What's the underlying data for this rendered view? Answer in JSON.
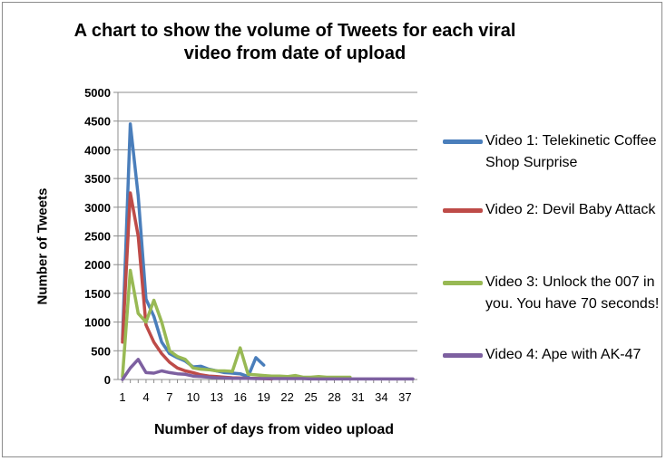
{
  "chart_data": {
    "type": "line",
    "title": "A chart to show the volume of Tweets for each viral video from date of upload",
    "xlabel": "Number of days from video upload",
    "ylabel": "Number of Tweets",
    "ylim": [
      0,
      5000
    ],
    "y_ticks": [
      "0",
      "500",
      "1000",
      "1500",
      "2000",
      "2500",
      "3000",
      "3500",
      "4000",
      "4500",
      "5000"
    ],
    "x_range": [
      1,
      38
    ],
    "x_tick_labels": [
      "1",
      "4",
      "7",
      "10",
      "13",
      "16",
      "19",
      "22",
      "25",
      "28",
      "31",
      "34",
      "37"
    ],
    "grid": "horizontal",
    "legend_position": "right",
    "series": [
      {
        "name": "Video 1: Telekinetic Coffee Shop Surprise",
        "color": "#4a7ebb",
        "points": [
          [
            1,
            700
          ],
          [
            2,
            4450
          ],
          [
            3,
            3200
          ],
          [
            4,
            1400
          ],
          [
            5,
            1100
          ],
          [
            6,
            650
          ],
          [
            7,
            450
          ],
          [
            8,
            380
          ],
          [
            9,
            320
          ],
          [
            10,
            220
          ],
          [
            11,
            230
          ],
          [
            12,
            180
          ],
          [
            13,
            150
          ],
          [
            14,
            120
          ],
          [
            15,
            110
          ],
          [
            16,
            100
          ],
          [
            17,
            50
          ],
          [
            18,
            380
          ],
          [
            19,
            250
          ]
        ]
      },
      {
        "name": "Video 2: Devil Baby Attack",
        "color": "#be4b48",
        "points": [
          [
            1,
            650
          ],
          [
            2,
            3250
          ],
          [
            3,
            2500
          ],
          [
            4,
            950
          ],
          [
            5,
            650
          ],
          [
            6,
            450
          ],
          [
            7,
            300
          ],
          [
            8,
            200
          ],
          [
            9,
            150
          ],
          [
            10,
            120
          ],
          [
            11,
            80
          ],
          [
            12,
            60
          ],
          [
            13,
            50
          ],
          [
            14,
            40
          ],
          [
            15,
            30
          ],
          [
            16,
            25
          ],
          [
            17,
            20
          ],
          [
            18,
            20
          ],
          [
            19,
            15
          ],
          [
            20,
            10
          ]
        ]
      },
      {
        "name": "Video 3: Unlock the 007 in you. You have 70 seconds!",
        "color": "#98b954",
        "points": [
          [
            1,
            50
          ],
          [
            2,
            1900
          ],
          [
            3,
            1150
          ],
          [
            4,
            1000
          ],
          [
            5,
            1380
          ],
          [
            6,
            1000
          ],
          [
            7,
            500
          ],
          [
            8,
            400
          ],
          [
            9,
            350
          ],
          [
            10,
            200
          ],
          [
            11,
            180
          ],
          [
            12,
            170
          ],
          [
            13,
            150
          ],
          [
            14,
            150
          ],
          [
            15,
            140
          ],
          [
            16,
            550
          ],
          [
            17,
            90
          ],
          [
            18,
            80
          ],
          [
            19,
            70
          ],
          [
            20,
            60
          ],
          [
            21,
            60
          ],
          [
            22,
            50
          ],
          [
            23,
            70
          ],
          [
            24,
            40
          ],
          [
            25,
            40
          ],
          [
            26,
            50
          ],
          [
            27,
            40
          ],
          [
            28,
            40
          ],
          [
            29,
            40
          ],
          [
            30,
            40
          ]
        ]
      },
      {
        "name": "Video 4: Ape with AK-47",
        "color": "#7d60a0",
        "points": [
          [
            1,
            0
          ],
          [
            2,
            200
          ],
          [
            3,
            350
          ],
          [
            4,
            120
          ],
          [
            5,
            110
          ],
          [
            6,
            150
          ],
          [
            7,
            120
          ],
          [
            8,
            100
          ],
          [
            9,
            90
          ],
          [
            10,
            60
          ],
          [
            11,
            50
          ],
          [
            12,
            40
          ],
          [
            13,
            30
          ],
          [
            14,
            25
          ],
          [
            15,
            20
          ],
          [
            16,
            20
          ],
          [
            17,
            20
          ],
          [
            18,
            15
          ],
          [
            19,
            15
          ],
          [
            20,
            15
          ],
          [
            21,
            15
          ],
          [
            22,
            15
          ],
          [
            23,
            15
          ],
          [
            24,
            15
          ],
          [
            25,
            10
          ],
          [
            26,
            10
          ],
          [
            27,
            10
          ],
          [
            28,
            10
          ],
          [
            29,
            10
          ],
          [
            30,
            10
          ],
          [
            31,
            10
          ],
          [
            32,
            10
          ],
          [
            33,
            10
          ],
          [
            34,
            10
          ],
          [
            35,
            10
          ],
          [
            36,
            10
          ],
          [
            37,
            10
          ],
          [
            38,
            10
          ]
        ]
      }
    ]
  }
}
